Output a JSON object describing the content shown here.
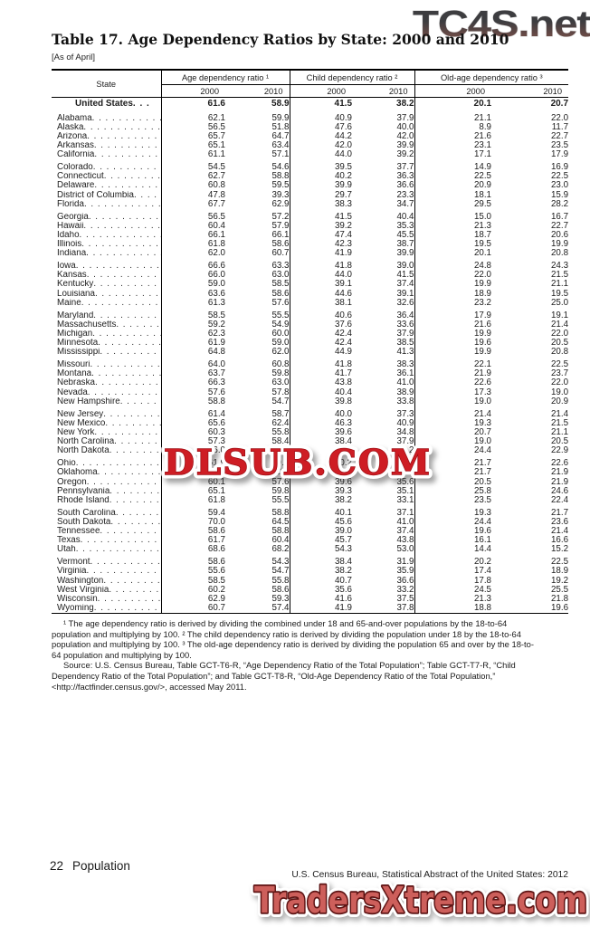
{
  "watermarks": {
    "top_right": "TC4S.net",
    "middle": "DLSUB.COM",
    "bottom": "TradersXtreme.com"
  },
  "title": "Table 17. Age Dependency Ratios by State: 2000 and 2010",
  "as_of": "[As of April]",
  "table": {
    "state_header": "State",
    "groups": [
      "Age dependency ratio ¹",
      "Child dependency ratio ²",
      "Old-age dependency ratio ³"
    ],
    "years": [
      "2000",
      "2010"
    ],
    "united_states": {
      "name": "United States",
      "values": [
        "61.6",
        "58.9",
        "41.5",
        "38.2",
        "20.1",
        "20.7"
      ]
    },
    "rows": [
      {
        "name": "Alabama",
        "gap_before": true,
        "values": [
          "62.1",
          "59.9",
          "40.9",
          "37.9",
          "21.1",
          "22.0"
        ]
      },
      {
        "name": "Alaska",
        "values": [
          "56.5",
          "51.8",
          "47.6",
          "40.0",
          "8.9",
          "11.7"
        ]
      },
      {
        "name": "Arizona",
        "values": [
          "65.7",
          "64.7",
          "44.2",
          "42.0",
          "21.6",
          "22.7"
        ]
      },
      {
        "name": "Arkansas",
        "values": [
          "65.1",
          "63.4",
          "42.0",
          "39.9",
          "23.1",
          "23.5"
        ]
      },
      {
        "name": "California",
        "values": [
          "61.1",
          "57.1",
          "44.0",
          "39.2",
          "17.1",
          "17.9"
        ]
      },
      {
        "name": "Colorado",
        "gap_before": true,
        "values": [
          "54.5",
          "54.6",
          "39.5",
          "37.7",
          "14.9",
          "16.9"
        ]
      },
      {
        "name": "Connecticut",
        "values": [
          "62.7",
          "58.8",
          "40.2",
          "36.3",
          "22.5",
          "22.5"
        ]
      },
      {
        "name": "Delaware",
        "values": [
          "60.8",
          "59.5",
          "39.9",
          "36.6",
          "20.9",
          "23.0"
        ]
      },
      {
        "name": "District of Columbia",
        "values": [
          "47.8",
          "39.3",
          "29.7",
          "23.3",
          "18.1",
          "15.9"
        ]
      },
      {
        "name": "Florida",
        "values": [
          "67.7",
          "62.9",
          "38.3",
          "34.7",
          "29.5",
          "28.2"
        ]
      },
      {
        "name": "Georgia",
        "gap_before": true,
        "values": [
          "56.5",
          "57.2",
          "41.5",
          "40.4",
          "15.0",
          "16.7"
        ]
      },
      {
        "name": "Hawaii",
        "values": [
          "60.4",
          "57.9",
          "39.2",
          "35.3",
          "21.3",
          "22.7"
        ]
      },
      {
        "name": "Idaho",
        "values": [
          "66.1",
          "66.1",
          "47.4",
          "45.5",
          "18.7",
          "20.6"
        ]
      },
      {
        "name": "Illinois",
        "values": [
          "61.8",
          "58.6",
          "42.3",
          "38.7",
          "19.5",
          "19.9"
        ]
      },
      {
        "name": "Indiana",
        "values": [
          "62.0",
          "60.7",
          "41.9",
          "39.9",
          "20.1",
          "20.8"
        ]
      },
      {
        "name": "Iowa",
        "gap_before": true,
        "values": [
          "66.6",
          "63.3",
          "41.8",
          "39.0",
          "24.8",
          "24.3"
        ]
      },
      {
        "name": "Kansas",
        "values": [
          "66.0",
          "63.0",
          "44.0",
          "41.5",
          "22.0",
          "21.5"
        ]
      },
      {
        "name": "Kentucky",
        "values": [
          "59.0",
          "58.5",
          "39.1",
          "37.4",
          "19.9",
          "21.1"
        ]
      },
      {
        "name": "Louisiana",
        "values": [
          "63.6",
          "58.6",
          "44.6",
          "39.1",
          "18.9",
          "19.5"
        ]
      },
      {
        "name": "Maine",
        "values": [
          "61.3",
          "57.6",
          "38.1",
          "32.6",
          "23.2",
          "25.0"
        ]
      },
      {
        "name": "Maryland",
        "gap_before": true,
        "values": [
          "58.5",
          "55.5",
          "40.6",
          "36.4",
          "17.9",
          "19.1"
        ]
      },
      {
        "name": "Massachusetts",
        "values": [
          "59.2",
          "54.9",
          "37.6",
          "33.6",
          "21.6",
          "21.4"
        ]
      },
      {
        "name": "Michigan",
        "values": [
          "62.3",
          "60.0",
          "42.4",
          "37.9",
          "19.9",
          "22.0"
        ]
      },
      {
        "name": "Minnesota",
        "values": [
          "61.9",
          "59.0",
          "42.4",
          "38.5",
          "19.6",
          "20.5"
        ]
      },
      {
        "name": "Mississippi",
        "values": [
          "64.8",
          "62.0",
          "44.9",
          "41.3",
          "19.9",
          "20.8"
        ]
      },
      {
        "name": "Missouri",
        "gap_before": true,
        "values": [
          "64.0",
          "60.8",
          "41.8",
          "38.3",
          "22.1",
          "22.5"
        ]
      },
      {
        "name": "Montana",
        "values": [
          "63.7",
          "59.8",
          "41.7",
          "36.1",
          "21.9",
          "23.7"
        ]
      },
      {
        "name": "Nebraska",
        "values": [
          "66.3",
          "63.0",
          "43.8",
          "41.0",
          "22.6",
          "22.0"
        ]
      },
      {
        "name": "Nevada",
        "values": [
          "57.6",
          "57.8",
          "40.4",
          "38.9",
          "17.3",
          "19.0"
        ]
      },
      {
        "name": "New Hampshire",
        "values": [
          "58.8",
          "54.7",
          "39.8",
          "33.8",
          "19.0",
          "20.9"
        ]
      },
      {
        "name": "New Jersey",
        "gap_before": true,
        "values": [
          "61.4",
          "58.7",
          "40.0",
          "37.3",
          "21.4",
          "21.4"
        ]
      },
      {
        "name": "New Mexico",
        "values": [
          "65.6",
          "62.4",
          "46.3",
          "40.9",
          "19.3",
          "21.5"
        ]
      },
      {
        "name": "New York",
        "values": [
          "60.3",
          "55.8",
          "39.6",
          "34.8",
          "20.7",
          "21.1"
        ]
      },
      {
        "name": "North Carolina",
        "values": [
          "57.3",
          "58.4",
          "38.4",
          "37.9",
          "19.0",
          "20.5"
        ]
      },
      {
        "name": "North Dakota",
        "values": [
          "66.0",
          "58.2",
          "41.6",
          "35.2",
          "24.4",
          "22.9"
        ]
      },
      {
        "name": "Ohio",
        "gap_before": true,
        "values": [
          "61.9",
          "59.6",
          "40.2",
          "37.0",
          "21.7",
          "22.6"
        ]
      },
      {
        "name": "Oklahoma",
        "values": [
          "63.0",
          "60.9",
          "41.3",
          "39.0",
          "21.7",
          "21.9"
        ]
      },
      {
        "name": "Oregon",
        "values": [
          "60.1",
          "57.6",
          "39.6",
          "35.6",
          "20.5",
          "21.9"
        ]
      },
      {
        "name": "Pennsylvania",
        "values": [
          "65.1",
          "59.8",
          "39.3",
          "35.1",
          "25.8",
          "24.6"
        ]
      },
      {
        "name": "Rhode Island",
        "values": [
          "61.8",
          "55.5",
          "38.2",
          "33.1",
          "23.5",
          "22.4"
        ]
      },
      {
        "name": "South Carolina",
        "gap_before": true,
        "values": [
          "59.4",
          "58.8",
          "40.1",
          "37.1",
          "19.3",
          "21.7"
        ]
      },
      {
        "name": "South Dakota",
        "values": [
          "70.0",
          "64.5",
          "45.6",
          "41.0",
          "24.4",
          "23.6"
        ]
      },
      {
        "name": "Tennessee",
        "values": [
          "58.6",
          "58.8",
          "39.0",
          "37.4",
          "19.6",
          "21.4"
        ]
      },
      {
        "name": "Texas",
        "values": [
          "61.7",
          "60.4",
          "45.7",
          "43.8",
          "16.1",
          "16.6"
        ]
      },
      {
        "name": "Utah",
        "values": [
          "68.6",
          "68.2",
          "54.3",
          "53.0",
          "14.4",
          "15.2"
        ]
      },
      {
        "name": "Vermont",
        "gap_before": true,
        "values": [
          "58.6",
          "54.3",
          "38.4",
          "31.9",
          "20.2",
          "22.5"
        ]
      },
      {
        "name": "Virginia",
        "values": [
          "55.6",
          "54.7",
          "38.2",
          "35.9",
          "17.4",
          "18.9"
        ]
      },
      {
        "name": "Washington",
        "values": [
          "58.5",
          "55.8",
          "40.7",
          "36.6",
          "17.8",
          "19.2"
        ]
      },
      {
        "name": "West Virginia",
        "values": [
          "60.2",
          "58.6",
          "35.6",
          "33.2",
          "24.5",
          "25.5"
        ]
      },
      {
        "name": "Wisconsin",
        "values": [
          "62.9",
          "59.3",
          "41.6",
          "37.5",
          "21.3",
          "21.8"
        ]
      },
      {
        "name": "Wyoming",
        "values": [
          "60.7",
          "57.4",
          "41.9",
          "37.8",
          "18.8",
          "19.6"
        ]
      }
    ]
  },
  "footnotes": "¹ The age dependency ratio is derived by dividing the combined under 18 and 65-and-over populations by the 18-to-64 population and multiplying by 100. ² The child dependency ratio is derived by dividing the population under 18 by the 18-to-64 population and multiplying by 100. ³ The old-age dependency ratio is derived by dividing the population 65 and over by the 18-to-64 population and multiplying by 100.",
  "source_note": "Source: U.S. Census Bureau, Table GCT-T6-R, “Age Dependency Ratio of the Total Population”; Table GCT-T7-R, “Child Dependency Ratio of the Total Population”; and Table GCT-T8-R, “Old-Age Dependency Ratio of the Total Population,” <http://factfinder.census.gov/>, accessed May 2011.",
  "footer": {
    "page_number": "22",
    "section": "Population",
    "edition": "U.S. Census Bureau, Statistical Abstract of the United States: 2012"
  }
}
